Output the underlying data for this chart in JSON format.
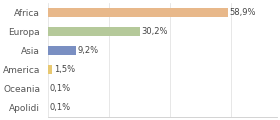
{
  "categories": [
    "Africa",
    "Europa",
    "Asia",
    "America",
    "Oceania",
    "Apolidi"
  ],
  "values": [
    58.9,
    30.2,
    9.2,
    1.5,
    0.1,
    0.1
  ],
  "labels": [
    "58,9%",
    "30,2%",
    "9,2%",
    "1,5%",
    "0,1%",
    "0,1%"
  ],
  "bar_colors": [
    "#e8b88a",
    "#b5c99a",
    "#7a8fc2",
    "#e8c870",
    "#cccccc",
    "#cccccc"
  ],
  "background_color": "#ffffff",
  "xlim": [
    0,
    75
  ],
  "label_fontsize": 6.0,
  "tick_fontsize": 6.5,
  "bar_height": 0.45
}
